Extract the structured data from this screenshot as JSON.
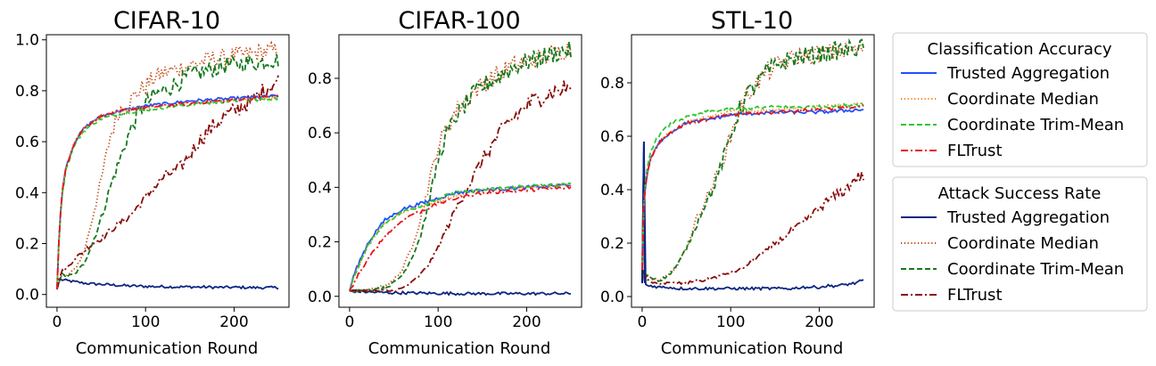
{
  "chart_data": [
    {
      "type": "line",
      "title": "CIFAR-10",
      "xlabel": "Communication Round",
      "ylabel": "",
      "xlim": [
        -12,
        262
      ],
      "ylim": [
        -0.05,
        1.02
      ],
      "xticks": [
        0,
        100,
        200
      ],
      "xtick_labels": [
        "0",
        "100",
        "200"
      ],
      "yticks": [
        0.0,
        0.2,
        0.4,
        0.6,
        0.8,
        1.0
      ],
      "ytick_labels": [
        "0.0",
        "0.2",
        "0.4",
        "0.6",
        "0.8",
        "1.0"
      ],
      "classification_accuracy": {
        "x": [
          0,
          2,
          5,
          10,
          20,
          30,
          40,
          50,
          70,
          100,
          150,
          200,
          250
        ],
        "trusted_aggregation": [
          0.02,
          0.2,
          0.38,
          0.5,
          0.6,
          0.65,
          0.68,
          0.7,
          0.72,
          0.74,
          0.76,
          0.77,
          0.78
        ],
        "coordinate_median": [
          0.02,
          0.2,
          0.38,
          0.5,
          0.6,
          0.65,
          0.68,
          0.7,
          0.72,
          0.735,
          0.75,
          0.765,
          0.775
        ],
        "coordinate_trim_mean": [
          0.02,
          0.2,
          0.37,
          0.49,
          0.59,
          0.64,
          0.67,
          0.69,
          0.71,
          0.725,
          0.745,
          0.76,
          0.77
        ],
        "fltrust": [
          0.02,
          0.2,
          0.38,
          0.5,
          0.6,
          0.65,
          0.68,
          0.7,
          0.72,
          0.735,
          0.75,
          0.765,
          0.78
        ]
      },
      "attack_success_rate": {
        "x": [
          0,
          5,
          10,
          20,
          30,
          40,
          50,
          60,
          70,
          80,
          90,
          100,
          110,
          120,
          130,
          140,
          150,
          160,
          170,
          180,
          190,
          200,
          210,
          220,
          230,
          240,
          250
        ],
        "trusted_aggregation": [
          0.06,
          0.058,
          0.055,
          0.05,
          0.045,
          0.042,
          0.04,
          0.038,
          0.036,
          0.034,
          0.033,
          0.032,
          0.031,
          0.031,
          0.03,
          0.03,
          0.03,
          0.029,
          0.029,
          0.028,
          0.028,
          0.028,
          0.028,
          0.027,
          0.027,
          0.027,
          0.027
        ],
        "coordinate_median": [
          0.02,
          0.08,
          0.07,
          0.1,
          0.16,
          0.3,
          0.45,
          0.62,
          0.72,
          0.75,
          0.79,
          0.82,
          0.85,
          0.87,
          0.88,
          0.89,
          0.9,
          0.91,
          0.92,
          0.93,
          0.93,
          0.94,
          0.94,
          0.945,
          0.95,
          0.955,
          0.96
        ],
        "coordinate_trim_mean": [
          0.02,
          0.08,
          0.07,
          0.08,
          0.12,
          0.2,
          0.3,
          0.42,
          0.52,
          0.62,
          0.7,
          0.75,
          0.78,
          0.8,
          0.82,
          0.84,
          0.86,
          0.87,
          0.88,
          0.89,
          0.9,
          0.9,
          0.91,
          0.91,
          0.91,
          0.92,
          0.92
        ],
        "fltrust": [
          0.02,
          0.09,
          0.1,
          0.14,
          0.17,
          0.2,
          0.22,
          0.25,
          0.28,
          0.3,
          0.34,
          0.38,
          0.42,
          0.46,
          0.48,
          0.5,
          0.55,
          0.6,
          0.64,
          0.67,
          0.7,
          0.72,
          0.74,
          0.76,
          0.79,
          0.82,
          0.84
        ]
      }
    },
    {
      "type": "line",
      "title": "CIFAR-100",
      "xlabel": "Communication Round",
      "ylabel": "",
      "xlim": [
        -12,
        262
      ],
      "ylim": [
        -0.04,
        0.96
      ],
      "xticks": [
        0,
        100,
        200
      ],
      "xtick_labels": [
        "0",
        "100",
        "200"
      ],
      "yticks": [
        0.0,
        0.2,
        0.4,
        0.6,
        0.8
      ],
      "ytick_labels": [
        "0.0",
        "0.2",
        "0.4",
        "0.6",
        "0.8"
      ],
      "classification_accuracy": {
        "x": [
          0,
          5,
          10,
          20,
          30,
          40,
          50,
          60,
          70,
          80,
          100,
          120,
          150,
          180,
          200,
          250
        ],
        "trusted_aggregation": [
          0.02,
          0.08,
          0.12,
          0.19,
          0.24,
          0.28,
          0.3,
          0.32,
          0.33,
          0.34,
          0.36,
          0.38,
          0.39,
          0.395,
          0.4,
          0.41
        ],
        "coordinate_median": [
          0.02,
          0.07,
          0.11,
          0.18,
          0.23,
          0.27,
          0.29,
          0.31,
          0.32,
          0.33,
          0.35,
          0.37,
          0.39,
          0.395,
          0.4,
          0.41
        ],
        "coordinate_trim_mean": [
          0.02,
          0.07,
          0.11,
          0.18,
          0.23,
          0.27,
          0.29,
          0.31,
          0.32,
          0.33,
          0.36,
          0.38,
          0.39,
          0.4,
          0.405,
          0.41
        ],
        "fltrust": [
          0.02,
          0.05,
          0.08,
          0.13,
          0.18,
          0.22,
          0.25,
          0.28,
          0.3,
          0.31,
          0.34,
          0.36,
          0.38,
          0.385,
          0.39,
          0.4
        ]
      },
      "attack_success_rate": {
        "x": [
          0,
          10,
          20,
          30,
          40,
          50,
          60,
          70,
          80,
          90,
          100,
          110,
          120,
          130,
          140,
          150,
          160,
          170,
          180,
          190,
          200,
          210,
          220,
          230,
          240,
          250
        ],
        "trusted_aggregation": [
          0.02,
          0.018,
          0.016,
          0.015,
          0.014,
          0.013,
          0.013,
          0.012,
          0.012,
          0.011,
          0.011,
          0.011,
          0.01,
          0.01,
          0.01,
          0.01,
          0.01,
          0.01,
          0.01,
          0.01,
          0.01,
          0.01,
          0.01,
          0.01,
          0.01,
          0.01
        ],
        "coordinate_median": [
          0.02,
          0.02,
          0.02,
          0.03,
          0.04,
          0.06,
          0.1,
          0.18,
          0.28,
          0.42,
          0.55,
          0.62,
          0.68,
          0.72,
          0.75,
          0.78,
          0.8,
          0.82,
          0.84,
          0.85,
          0.86,
          0.87,
          0.88,
          0.89,
          0.9,
          0.91
        ],
        "coordinate_trim_mean": [
          0.02,
          0.02,
          0.02,
          0.03,
          0.03,
          0.05,
          0.08,
          0.14,
          0.22,
          0.35,
          0.5,
          0.6,
          0.66,
          0.7,
          0.74,
          0.77,
          0.79,
          0.81,
          0.83,
          0.85,
          0.86,
          0.87,
          0.88,
          0.89,
          0.9,
          0.9
        ],
        "fltrust": [
          0.02,
          0.02,
          0.02,
          0.02,
          0.02,
          0.02,
          0.03,
          0.05,
          0.08,
          0.12,
          0.18,
          0.25,
          0.32,
          0.38,
          0.44,
          0.5,
          0.55,
          0.6,
          0.64,
          0.67,
          0.7,
          0.72,
          0.74,
          0.75,
          0.76,
          0.77
        ]
      }
    },
    {
      "type": "line",
      "title": "STL-10",
      "xlabel": "Communication Round",
      "ylabel": "",
      "xlim": [
        -12,
        262
      ],
      "ylim": [
        -0.04,
        0.98
      ],
      "xticks": [
        0,
        100,
        200
      ],
      "xtick_labels": [
        "0",
        "100",
        "200"
      ],
      "yticks": [
        0.0,
        0.2,
        0.4,
        0.6,
        0.8
      ],
      "ytick_labels": [
        "0.0",
        "0.2",
        "0.4",
        "0.6",
        "0.8"
      ],
      "classification_accuracy": {
        "x": [
          0,
          2,
          5,
          10,
          20,
          30,
          40,
          50,
          70,
          100,
          150,
          200,
          250
        ],
        "trusted_aggregation": [
          0.1,
          0.35,
          0.45,
          0.52,
          0.58,
          0.61,
          0.63,
          0.65,
          0.66,
          0.68,
          0.69,
          0.69,
          0.7
        ],
        "coordinate_median": [
          0.1,
          0.35,
          0.45,
          0.52,
          0.58,
          0.61,
          0.63,
          0.65,
          0.67,
          0.69,
          0.7,
          0.71,
          0.72
        ],
        "coordinate_trim_mean": [
          0.1,
          0.36,
          0.47,
          0.55,
          0.61,
          0.64,
          0.66,
          0.67,
          0.69,
          0.7,
          0.71,
          0.71,
          0.72
        ],
        "fltrust": [
          0.1,
          0.35,
          0.45,
          0.52,
          0.58,
          0.61,
          0.63,
          0.65,
          0.66,
          0.68,
          0.69,
          0.7,
          0.71
        ]
      },
      "attack_success_rate": {
        "x": [
          0,
          2,
          3,
          5,
          10,
          20,
          30,
          40,
          50,
          60,
          70,
          80,
          90,
          100,
          110,
          120,
          130,
          140,
          150,
          160,
          170,
          180,
          190,
          200,
          210,
          220,
          230,
          240,
          250
        ],
        "trusted_aggregation": [
          0.05,
          0.58,
          0.05,
          0.04,
          0.04,
          0.035,
          0.035,
          0.03,
          0.03,
          0.03,
          0.03,
          0.03,
          0.03,
          0.03,
          0.03,
          0.03,
          0.03,
          0.03,
          0.03,
          0.03,
          0.03,
          0.035,
          0.035,
          0.035,
          0.04,
          0.04,
          0.045,
          0.05,
          0.06
        ],
        "coordinate_median": [
          0.05,
          0.1,
          0.08,
          0.08,
          0.07,
          0.06,
          0.08,
          0.12,
          0.18,
          0.28,
          0.35,
          0.42,
          0.5,
          0.6,
          0.7,
          0.76,
          0.8,
          0.84,
          0.86,
          0.88,
          0.89,
          0.9,
          0.9,
          0.91,
          0.91,
          0.92,
          0.92,
          0.92,
          0.93
        ],
        "coordinate_trim_mean": [
          0.05,
          0.1,
          0.08,
          0.08,
          0.07,
          0.06,
          0.08,
          0.12,
          0.18,
          0.26,
          0.34,
          0.4,
          0.5,
          0.6,
          0.7,
          0.76,
          0.8,
          0.84,
          0.86,
          0.88,
          0.89,
          0.9,
          0.9,
          0.91,
          0.91,
          0.92,
          0.92,
          0.93,
          0.93
        ],
        "fltrust": [
          0.05,
          0.1,
          0.08,
          0.07,
          0.05,
          0.05,
          0.05,
          0.05,
          0.05,
          0.06,
          0.06,
          0.07,
          0.08,
          0.09,
          0.1,
          0.12,
          0.15,
          0.17,
          0.2,
          0.22,
          0.25,
          0.27,
          0.3,
          0.33,
          0.36,
          0.38,
          0.4,
          0.44,
          0.45
        ]
      }
    }
  ],
  "legends": {
    "accuracy": {
      "title": "Classification Accuracy",
      "entries": [
        {
          "key": "trusted_aggregation",
          "label": "Trusted Aggregation",
          "color": "#1f52ff",
          "dash": "solid"
        },
        {
          "key": "coordinate_median",
          "label": "Coordinate Median",
          "color": "#f97e0f",
          "dash": "dotted"
        },
        {
          "key": "coordinate_trim_mean",
          "label": "Coordinate Trim-Mean",
          "color": "#32c732",
          "dash": "dashed"
        },
        {
          "key": "fltrust",
          "label": "FLTrust",
          "color": "#e8141b",
          "dash": "dashdot"
        }
      ]
    },
    "asr": {
      "title": "Attack Success Rate",
      "entries": [
        {
          "key": "trusted_aggregation",
          "label": "Trusted Aggregation",
          "color": "#0c2680",
          "dash": "solid"
        },
        {
          "key": "coordinate_median",
          "label": "Coordinate Median",
          "color": "#c0440f",
          "dash": "dotted"
        },
        {
          "key": "coordinate_trim_mean",
          "label": "Coordinate Trim-Mean",
          "color": "#157a1c",
          "dash": "dashed"
        },
        {
          "key": "fltrust",
          "label": "FLTrust",
          "color": "#870b09",
          "dash": "dashdot"
        }
      ]
    }
  }
}
